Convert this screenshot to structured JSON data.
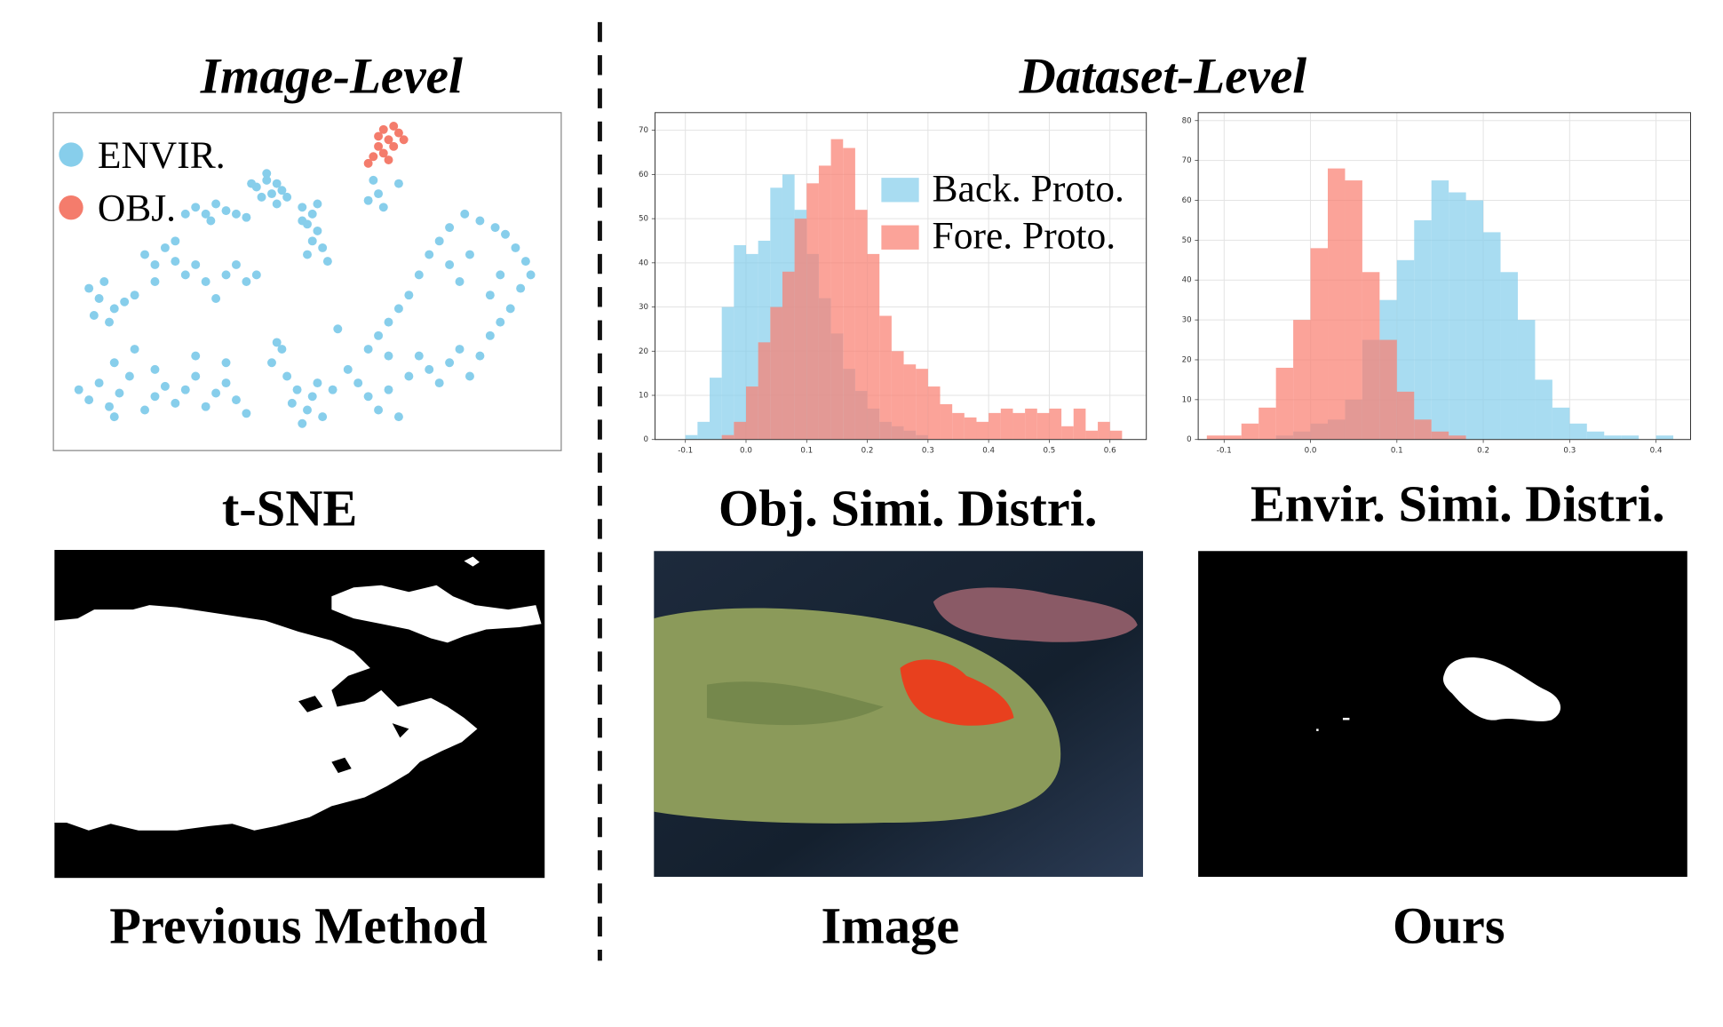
{
  "headings": [
    "Image-Level",
    "Dataset-Level"
  ],
  "captions": [
    "t-SNE",
    "Obj. Simi. Distri.",
    "Envir. Simi. Distri.",
    "Previous Method",
    "Image",
    "Ours"
  ],
  "chart_data": [
    {
      "type": "scatter",
      "xlim": [
        0,
        100
      ],
      "ylim": [
        0,
        100
      ],
      "legend": "upper left",
      "series": [
        {
          "name": "ENVIR.",
          "color": "#87ceeb",
          "x": [
            40,
            42,
            44,
            43,
            45,
            41,
            44,
            46,
            42,
            39,
            49,
            51,
            50,
            52,
            51,
            53,
            50,
            54,
            49,
            52,
            28,
            30,
            32,
            34,
            36,
            38,
            31,
            26,
            18,
            20,
            22,
            24,
            26,
            28,
            30,
            34,
            36,
            38,
            40,
            24,
            20,
            32,
            7,
            9,
            10,
            12,
            8,
            14,
            16,
            11,
            5,
            7,
            9,
            11,
            13,
            15,
            18,
            20,
            22,
            24,
            26,
            28,
            30,
            32,
            34,
            36,
            38,
            12,
            20,
            28,
            34,
            16,
            12,
            43,
            45,
            46,
            48,
            50,
            49,
            51,
            53,
            52,
            47,
            55,
            44,
            60,
            62,
            64,
            66,
            68,
            70,
            72,
            74,
            76,
            78,
            80,
            82,
            84,
            86,
            88,
            90,
            92,
            94,
            93,
            91,
            89,
            87,
            84,
            81,
            78,
            76,
            74,
            72,
            70,
            68,
            66,
            64,
            62,
            80,
            78,
            82,
            86,
            88,
            66,
            58,
            62,
            64,
            65,
            68,
            63,
            56
          ],
          "values": [
            78,
            80,
            79,
            76,
            77,
            75,
            73,
            75,
            82,
            79,
            72,
            70,
            67,
            65,
            62,
            60,
            58,
            56,
            68,
            73,
            72,
            70,
            73,
            71,
            70,
            69,
            68,
            70,
            58,
            55,
            60,
            56,
            52,
            55,
            50,
            52,
            55,
            50,
            52,
            62,
            50,
            45,
            48,
            45,
            50,
            42,
            40,
            44,
            46,
            38,
            18,
            15,
            20,
            13,
            17,
            22,
            12,
            16,
            19,
            14,
            18,
            22,
            13,
            17,
            20,
            15,
            11,
            10,
            24,
            28,
            26,
            30,
            26,
            26,
            30,
            22,
            18,
            12,
            8,
            16,
            10,
            20,
            14,
            18,
            32,
            20,
            16,
            12,
            18,
            10,
            22,
            28,
            24,
            20,
            26,
            30,
            22,
            28,
            34,
            38,
            42,
            48,
            52,
            56,
            60,
            64,
            66,
            68,
            70,
            66,
            62,
            58,
            52,
            46,
            42,
            38,
            34,
            30,
            50,
            55,
            58,
            46,
            52,
            28,
            24,
            74,
            76,
            72,
            79,
            80,
            36
          ]
        },
        {
          "name": "OBJ.",
          "color": "#f47c6c",
          "x": [
            62,
            63,
            64,
            65,
            66,
            67,
            68,
            69,
            65,
            67,
            64,
            66
          ],
          "values": [
            85,
            87,
            90,
            88,
            92,
            90,
            94,
            92,
            95,
            96,
            93,
            86
          ]
        }
      ]
    },
    {
      "type": "histogram",
      "xlim": [
        -0.15,
        0.66
      ],
      "ylim": [
        0,
        74
      ],
      "grid": true,
      "legend": "upper right",
      "xticks": [
        -0.1,
        {
          "value": 0,
          "label": "0.0"
        },
        0.1,
        0.2,
        0.3,
        0.4,
        0.5,
        0.6
      ],
      "yticks": [
        0,
        10,
        20,
        30,
        40,
        50,
        60,
        70
      ],
      "bins": [
        -0.12,
        -0.1,
        -0.08,
        -0.06,
        -0.04,
        -0.02,
        0,
        0.02,
        0.04,
        0.06,
        0.08,
        0.1,
        0.12,
        0.14,
        0.16,
        0.18,
        0.2,
        0.22,
        0.24,
        0.26,
        0.28,
        0.3,
        0.32,
        0.34,
        0.36,
        0.38,
        0.4,
        0.42,
        0.44,
        0.46,
        0.48,
        0.5,
        0.52,
        0.54,
        0.56,
        0.58,
        0.6,
        0.62
      ],
      "series": [
        {
          "name": "Back. Proto.",
          "color": "#87ceeb",
          "values": [
            0,
            1,
            4,
            14,
            30,
            44,
            42,
            45,
            57,
            60,
            52,
            42,
            32,
            24,
            16,
            11,
            7,
            4,
            3,
            2,
            1,
            0,
            0,
            0,
            0,
            0,
            0,
            0,
            0,
            0,
            0,
            0,
            0,
            0,
            0,
            0,
            0
          ]
        },
        {
          "name": "Fore. Proto.",
          "color": "#fa8072",
          "values": [
            0,
            0,
            0,
            0,
            1,
            4,
            12,
            22,
            30,
            38,
            50,
            58,
            62,
            68,
            66,
            52,
            42,
            28,
            20,
            17,
            16,
            12,
            8,
            6,
            5,
            4,
            6,
            7,
            6,
            7,
            6,
            7,
            3,
            7,
            2,
            4,
            2
          ]
        }
      ]
    },
    {
      "type": "histogram",
      "xlim": [
        -0.13,
        0.44
      ],
      "ylim": [
        0,
        82
      ],
      "grid": true,
      "xticks": [
        -0.1,
        {
          "value": 0,
          "label": "0.0"
        },
        0.1,
        0.2,
        0.3,
        0.4
      ],
      "yticks": [
        0,
        10,
        20,
        30,
        40,
        50,
        60,
        70,
        80
      ],
      "bins": [
        -0.12,
        -0.1,
        -0.08,
        -0.06,
        -0.04,
        -0.02,
        0,
        0.02,
        0.04,
        0.06,
        0.08,
        0.1,
        0.12,
        0.14,
        0.16,
        0.18,
        0.2,
        0.22,
        0.24,
        0.26,
        0.28,
        0.3,
        0.32,
        0.34,
        0.36,
        0.38,
        0.4,
        0.42
      ],
      "series": [
        {
          "color": "#87ceeb",
          "values": [
            0,
            0,
            0,
            0,
            1,
            2,
            4,
            5,
            10,
            25,
            35,
            45,
            55,
            65,
            62,
            60,
            52,
            42,
            30,
            15,
            8,
            4,
            2,
            1,
            1,
            0,
            1
          ]
        },
        {
          "color": "#fa8072",
          "values": [
            1,
            1,
            4,
            8,
            18,
            30,
            48,
            68,
            65,
            42,
            25,
            12,
            5,
            2,
            1,
            0,
            0,
            0,
            0,
            0,
            0,
            0,
            0,
            0,
            0,
            0,
            0
          ]
        }
      ]
    }
  ]
}
